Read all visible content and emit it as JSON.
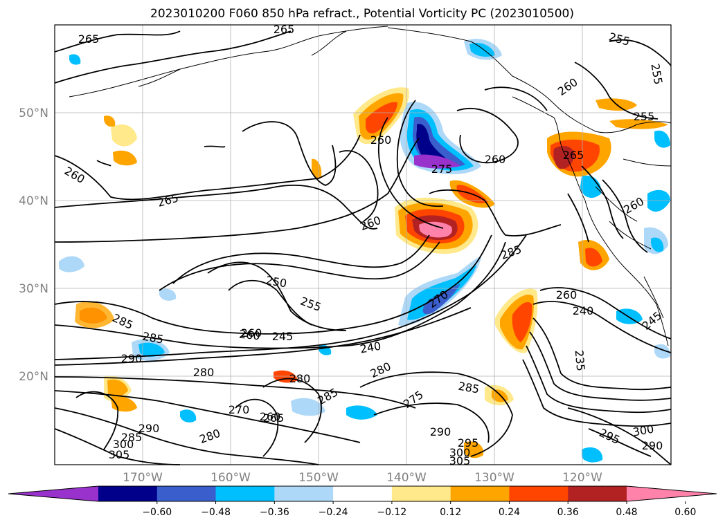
{
  "title": "2023010200 F060 850 hPa refract., Potential Vorticity PC (2023010500)",
  "lat_labels": [
    "50°N",
    "40°N",
    "30°N",
    "20°N"
  ],
  "lon_labels": [
    "170°W",
    "160°W",
    "150°W",
    "140°W",
    "130°W",
    "120°W"
  ],
  "colorbar": {
    "ticks": [
      "−0.60",
      "−0.48",
      "−0.36",
      "−0.24",
      "−0.12",
      "0.12",
      "0.24",
      "0.36",
      "0.48",
      "0.60"
    ],
    "colors": [
      "#9932cc",
      "#00008b",
      "#3a5fcd",
      "#00bfff",
      "#add8f8",
      "#ffffff",
      "#ffe98a",
      "#ffa500",
      "#ff4500",
      "#b22222",
      "#ff82ab"
    ],
    "extend": "both"
  },
  "contour_labels": [
    "265",
    "265",
    "260",
    "265",
    "260",
    "260",
    "260",
    "275",
    "255",
    "255",
    "260",
    "255",
    "265",
    "260",
    "285",
    "250",
    "255",
    "260",
    "245",
    "240",
    "270",
    "280",
    "240",
    "260",
    "285",
    "285",
    "290",
    "280",
    "280",
    "275",
    "285",
    "270",
    "265",
    "290",
    "285",
    "300",
    "305",
    "280",
    "295",
    "300",
    "305",
    "290",
    "285",
    "235",
    "295",
    "300",
    "290",
    "245",
    "260",
    "260"
  ],
  "colors": {
    "land_outline": "#000000",
    "grid": "#b0b0b0",
    "axis_labels": "#808080"
  }
}
